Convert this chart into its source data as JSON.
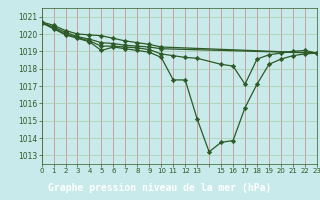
{
  "background_color": "#c8eaea",
  "grid_color_v": "#d08080",
  "grid_color_h": "#aaccaa",
  "line_color": "#2d5a27",
  "marker_color": "#2d5a27",
  "title": "Graphe pression niveau de la mer (hPa)",
  "title_bg": "#336633",
  "title_fg": "#ffffff",
  "xlim": [
    0,
    23
  ],
  "ylim": [
    1012.5,
    1021.5
  ],
  "yticks": [
    1013,
    1014,
    1015,
    1016,
    1017,
    1018,
    1019,
    1020,
    1021
  ],
  "xtick_labels": [
    "0",
    "1",
    "2",
    "3",
    "4",
    "5",
    "6",
    "7",
    "8",
    "9",
    "10",
    "11",
    "12",
    "13",
    "",
    "15",
    "16",
    "17",
    "18",
    "19",
    "20",
    "21",
    "22",
    "23"
  ],
  "series": [
    {
      "x": [
        0,
        1,
        2,
        3,
        4,
        5,
        6,
        7,
        8,
        9,
        10,
        23
      ],
      "y": [
        1020.7,
        1020.5,
        1020.2,
        1020.0,
        1019.95,
        1019.9,
        1019.75,
        1019.6,
        1019.5,
        1019.4,
        1019.25,
        1018.9
      ]
    },
    {
      "x": [
        0,
        1,
        2,
        3,
        4,
        5,
        6,
        7,
        8,
        9,
        10,
        23
      ],
      "y": [
        1020.65,
        1020.4,
        1020.1,
        1019.85,
        1019.7,
        1019.5,
        1019.45,
        1019.35,
        1019.3,
        1019.25,
        1019.15,
        1018.9
      ]
    },
    {
      "x": [
        0,
        1,
        2,
        3,
        4,
        5,
        6,
        7,
        8,
        9,
        10,
        11,
        12,
        13,
        15,
        16,
        17,
        18,
        19,
        20,
        21,
        22,
        23
      ],
      "y": [
        1020.65,
        1020.35,
        1020.0,
        1019.8,
        1019.6,
        1019.3,
        1019.3,
        1019.25,
        1019.2,
        1019.1,
        1018.85,
        1018.75,
        1018.65,
        1018.6,
        1018.25,
        1018.15,
        1017.1,
        1018.55,
        1018.8,
        1018.9,
        1019.0,
        1019.05,
        1018.9
      ]
    },
    {
      "x": [
        0,
        1,
        2,
        3,
        4,
        5,
        6,
        7,
        8,
        9,
        10,
        11,
        12,
        13,
        14,
        15,
        16,
        17,
        18,
        19,
        20,
        21,
        22,
        23
      ],
      "y": [
        1020.65,
        1020.3,
        1019.95,
        1019.75,
        1019.55,
        1019.05,
        1019.25,
        1019.15,
        1019.05,
        1018.95,
        1018.65,
        1017.35,
        1017.35,
        1015.1,
        1013.2,
        1013.75,
        1013.85,
        1015.75,
        1017.1,
        1018.25,
        1018.55,
        1018.75,
        1018.85,
        1018.9
      ]
    }
  ]
}
